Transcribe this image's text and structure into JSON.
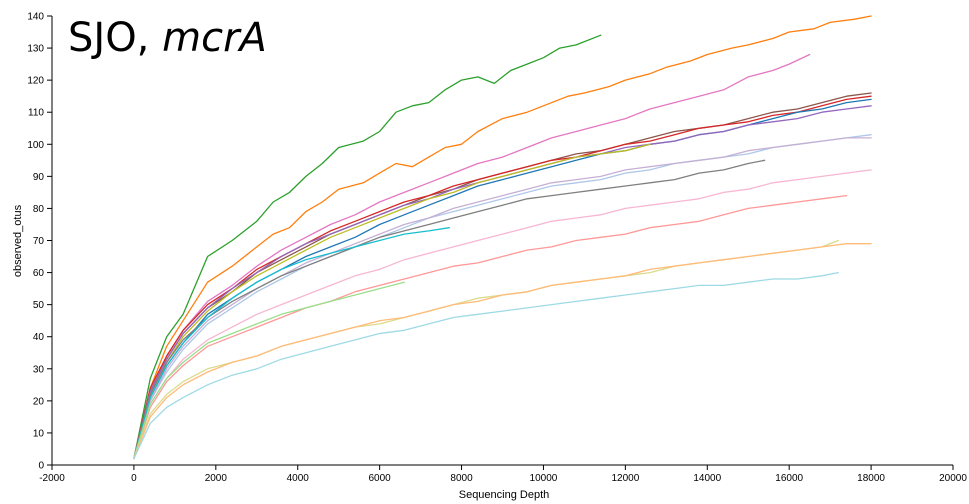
{
  "chart_data": {
    "type": "line",
    "title_main": "SJO, ",
    "title_italic": "mcrA",
    "xlabel": "Sequencing Depth",
    "ylabel": "observed_otus",
    "xlim": [
      -2000,
      20000
    ],
    "ylim": [
      0,
      140
    ],
    "x_ticks": [
      -2000,
      0,
      2000,
      4000,
      6000,
      8000,
      10000,
      12000,
      14000,
      16000,
      18000,
      20000
    ],
    "y_ticks": [
      0,
      10,
      20,
      30,
      40,
      50,
      60,
      70,
      80,
      90,
      100,
      110,
      120,
      130,
      140
    ],
    "grid": false,
    "series": [
      {
        "color": "#2ca02c",
        "x": [
          0,
          400,
          800,
          1200,
          1800,
          2400,
          3000,
          3400,
          3800,
          4200,
          4600,
          5000,
          5600,
          6000,
          6400,
          6800,
          7200,
          7600,
          8000,
          8400,
          8800,
          9200,
          9600,
          10000,
          10400,
          10800,
          11400
        ],
        "y": [
          2,
          27,
          40,
          47,
          65,
          70,
          76,
          82,
          85,
          90,
          94,
          99,
          101,
          104,
          110,
          112,
          113,
          117,
          120,
          121,
          119,
          123,
          125,
          127,
          130,
          131,
          134
        ]
      },
      {
        "color": "#ff7f0e",
        "x": [
          0,
          400,
          800,
          1200,
          1800,
          2400,
          3000,
          3400,
          3800,
          4200,
          4600,
          5000,
          5600,
          6000,
          6400,
          6800,
          7200,
          7600,
          8000,
          8400,
          9000,
          9600,
          10000,
          10600,
          11000,
          11600,
          12000,
          12600,
          13000,
          13600,
          14000,
          14600,
          15000,
          15600,
          16000,
          16600,
          17000,
          17600,
          18000
        ],
        "y": [
          2,
          24,
          37,
          45,
          57,
          62,
          68,
          72,
          74,
          79,
          82,
          86,
          88,
          91,
          94,
          93,
          96,
          99,
          100,
          104,
          108,
          110,
          112,
          115,
          116,
          118,
          120,
          122,
          124,
          126,
          128,
          130,
          131,
          133,
          135,
          136,
          138,
          139,
          140
        ]
      },
      {
        "color": "#e377c2",
        "x": [
          0,
          400,
          800,
          1200,
          1800,
          2400,
          3000,
          3600,
          4200,
          4800,
          5400,
          6000,
          6600,
          7200,
          7800,
          8400,
          9000,
          9600,
          10200,
          10800,
          11400,
          12000,
          12600,
          13200,
          13800,
          14400,
          15000,
          15600,
          16000,
          16500
        ],
        "y": [
          2,
          22,
          34,
          42,
          51,
          56,
          62,
          67,
          71,
          75,
          78,
          82,
          85,
          88,
          91,
          94,
          96,
          99,
          102,
          104,
          106,
          108,
          111,
          113,
          115,
          117,
          121,
          123,
          125,
          128
        ]
      },
      {
        "color": "#8c564b",
        "x": [
          0,
          400,
          800,
          1200,
          1800,
          2400,
          3000,
          3600,
          4200,
          4800,
          5400,
          6000,
          6600,
          7200,
          7800,
          8400,
          9000,
          9600,
          10200,
          10800,
          11400,
          12000,
          12600,
          13200,
          13800,
          14400,
          15000,
          15600,
          16200,
          16800,
          17400,
          18000
        ],
        "y": [
          2,
          23,
          33,
          41,
          49,
          54,
          60,
          64,
          68,
          72,
          75,
          78,
          81,
          84,
          86,
          89,
          91,
          93,
          95,
          97,
          98,
          100,
          102,
          104,
          105,
          106,
          108,
          110,
          111,
          113,
          115,
          116
        ]
      },
      {
        "color": "#d62728",
        "x": [
          0,
          400,
          800,
          1200,
          1800,
          2400,
          3000,
          3600,
          4200,
          4800,
          5400,
          6000,
          6600,
          7200,
          7800,
          8400,
          9000,
          9600,
          10200,
          10800,
          11400,
          12000,
          12600,
          13200,
          13800,
          14400,
          15000,
          15600,
          16200,
          16800,
          17400,
          18000
        ],
        "y": [
          2,
          24,
          34,
          42,
          50,
          55,
          61,
          65,
          69,
          73,
          76,
          79,
          82,
          84,
          87,
          89,
          91,
          93,
          95,
          96,
          98,
          100,
          101,
          103,
          105,
          106,
          107,
          109,
          110,
          112,
          114,
          115
        ]
      },
      {
        "color": "#1f77b4",
        "x": [
          0,
          400,
          800,
          1200,
          1800,
          2400,
          3000,
          3600,
          4200,
          4800,
          5400,
          6000,
          6600,
          7200,
          7800,
          8400,
          9000,
          9600,
          10200,
          10800,
          11400,
          12000,
          12600,
          13200,
          13800,
          14400,
          15000,
          15600,
          16200,
          16800,
          17400,
          18000
        ],
        "y": [
          2,
          21,
          31,
          38,
          47,
          52,
          57,
          61,
          65,
          68,
          71,
          75,
          78,
          81,
          84,
          87,
          89,
          91,
          93,
          95,
          97,
          98,
          100,
          101,
          103,
          104,
          106,
          108,
          110,
          111,
          113,
          114
        ]
      },
      {
        "color": "#9467bd",
        "x": [
          0,
          400,
          800,
          1200,
          1800,
          2400,
          3000,
          3600,
          4200,
          4800,
          5400,
          6000,
          6600,
          7200,
          7800,
          8400,
          9000,
          9600,
          10200,
          10800,
          11400,
          12000,
          12600,
          13200,
          13800,
          14400,
          15000,
          15600,
          16200,
          16800,
          17400,
          18000
        ],
        "y": [
          2,
          23,
          33,
          41,
          49,
          55,
          60,
          65,
          69,
          72,
          75,
          78,
          81,
          83,
          86,
          88,
          90,
          92,
          94,
          96,
          97,
          99,
          100,
          101,
          103,
          104,
          106,
          107,
          108,
          110,
          111,
          112
        ]
      },
      {
        "color": "#bcbd22",
        "x": [
          0,
          400,
          800,
          1200,
          1800,
          2400,
          3000,
          3600,
          4200,
          4800,
          5400,
          6000,
          6600,
          7200,
          7800,
          8400,
          9000,
          9600,
          10200,
          10800,
          11400,
          12000,
          12600
        ],
        "y": [
          2,
          22,
          32,
          40,
          48,
          54,
          59,
          63,
          67,
          71,
          74,
          77,
          80,
          83,
          85,
          88,
          90,
          92,
          94,
          96,
          97,
          98,
          100
        ]
      },
      {
        "color": "#aec7e8",
        "x": [
          0,
          400,
          800,
          1200,
          1800,
          2400,
          3000,
          3600,
          4200,
          4800,
          5400,
          6000,
          6600,
          7200,
          7800,
          8400,
          9000,
          9600,
          10200,
          10800,
          11400,
          12000,
          12600,
          13200,
          13800,
          14400,
          15000,
          15600,
          16200,
          16800,
          17400,
          18000
        ],
        "y": [
          2,
          20,
          29,
          36,
          44,
          49,
          54,
          58,
          62,
          65,
          68,
          71,
          74,
          77,
          79,
          81,
          83,
          85,
          87,
          88,
          89,
          91,
          92,
          94,
          95,
          96,
          97,
          99,
          100,
          101,
          102,
          103
        ]
      },
      {
        "color": "#c5b0d5",
        "x": [
          0,
          400,
          800,
          1200,
          1800,
          2400,
          3000,
          3600,
          4200,
          4800,
          5400,
          6000,
          6600,
          7200,
          7800,
          8400,
          9000,
          9600,
          10200,
          10800,
          11400,
          12000,
          12600,
          13200,
          13800,
          14400,
          15000,
          15600,
          16200,
          16800,
          17400,
          18000
        ],
        "y": [
          2,
          20,
          30,
          37,
          45,
          50,
          55,
          59,
          63,
          66,
          69,
          72,
          75,
          77,
          80,
          82,
          84,
          86,
          88,
          89,
          90,
          92,
          93,
          94,
          95,
          96,
          98,
          99,
          100,
          101,
          102,
          102
        ]
      },
      {
        "color": "#7f7f7f",
        "x": [
          0,
          400,
          800,
          1200,
          1800,
          2400,
          3000,
          3600,
          4200,
          4800,
          5400,
          6000,
          6600,
          7200,
          7800,
          8400,
          9000,
          9600,
          10200,
          10800,
          11400,
          12000,
          12600,
          13200,
          13800,
          14400,
          15000,
          15400
        ],
        "y": [
          2,
          22,
          32,
          39,
          46,
          51,
          55,
          59,
          62,
          65,
          68,
          71,
          73,
          75,
          77,
          79,
          81,
          83,
          84,
          85,
          86,
          87,
          88,
          89,
          91,
          92,
          94,
          95
        ]
      },
      {
        "color": "#17becf",
        "x": [
          0,
          400,
          800,
          1200,
          1800,
          2400,
          3000,
          3600,
          4200,
          4800,
          5400,
          6000,
          6600,
          7200,
          7700
        ],
        "y": [
          2,
          21,
          31,
          38,
          46,
          52,
          57,
          61,
          64,
          66,
          68,
          70,
          72,
          73,
          74
        ]
      },
      {
        "color": "#f7b6d2",
        "x": [
          0,
          400,
          800,
          1200,
          1800,
          2400,
          3000,
          3600,
          4200,
          4800,
          5400,
          6000,
          6600,
          7200,
          7800,
          8400,
          9000,
          9600,
          10200,
          10800,
          11400,
          12000,
          12600,
          13200,
          13800,
          14400,
          15000,
          15600,
          16200,
          16800,
          17400,
          18000
        ],
        "y": [
          2,
          19,
          27,
          33,
          39,
          43,
          47,
          50,
          53,
          56,
          59,
          61,
          64,
          66,
          68,
          70,
          72,
          74,
          76,
          77,
          78,
          80,
          81,
          82,
          83,
          85,
          86,
          88,
          89,
          90,
          91,
          92
        ]
      },
      {
        "color": "#ff9896",
        "x": [
          0,
          400,
          800,
          1200,
          1800,
          2400,
          3000,
          3600,
          4200,
          4800,
          5400,
          6000,
          6600,
          7200,
          7800,
          8400,
          9000,
          9600,
          10200,
          10800,
          11400,
          12000,
          12600,
          13200,
          13800,
          14400,
          15000,
          15600,
          16200,
          16800,
          17400
        ],
        "y": [
          2,
          18,
          26,
          31,
          37,
          40,
          43,
          46,
          49,
          51,
          54,
          56,
          58,
          60,
          62,
          63,
          65,
          67,
          68,
          70,
          71,
          72,
          74,
          75,
          76,
          78,
          80,
          81,
          82,
          83,
          84
        ]
      },
      {
        "color": "#98df8a",
        "x": [
          0,
          400,
          800,
          1200,
          1800,
          2400,
          3000,
          3600,
          4200,
          4800,
          5400,
          6000,
          6600
        ],
        "y": [
          2,
          19,
          27,
          32,
          38,
          41,
          44,
          47,
          49,
          51,
          53,
          55,
          57
        ]
      },
      {
        "color": "#dbdb8d",
        "x": [
          0,
          400,
          800,
          1200,
          1800,
          2400,
          3000,
          3600,
          4200,
          4800,
          5400,
          6000,
          6600,
          7200,
          7800,
          8400,
          9000,
          9600,
          10200,
          10800,
          11400,
          12000,
          12600,
          13200,
          13800,
          14400,
          15000,
          15600,
          16200,
          16800,
          17200
        ],
        "y": [
          2,
          16,
          22,
          26,
          30,
          32,
          34,
          37,
          39,
          41,
          43,
          44,
          46,
          48,
          50,
          52,
          53,
          54,
          56,
          57,
          58,
          59,
          60,
          62,
          63,
          64,
          65,
          66,
          67,
          68,
          70
        ]
      },
      {
        "color": "#ffbb78",
        "x": [
          0,
          400,
          800,
          1200,
          1800,
          2400,
          3000,
          3600,
          4200,
          4800,
          5400,
          6000,
          6600,
          7200,
          7800,
          8400,
          9000,
          9600,
          10200,
          10800,
          11400,
          12000,
          12600,
          13200,
          13800,
          14400,
          15000,
          15600,
          16200,
          16800,
          17400,
          18000
        ],
        "y": [
          2,
          15,
          21,
          25,
          29,
          32,
          34,
          37,
          39,
          41,
          43,
          45,
          46,
          48,
          50,
          51,
          53,
          54,
          56,
          57,
          58,
          59,
          61,
          62,
          63,
          64,
          65,
          66,
          67,
          68,
          69,
          69
        ]
      },
      {
        "color": "#9edae5",
        "x": [
          0,
          400,
          800,
          1200,
          1800,
          2400,
          3000,
          3600,
          4200,
          4800,
          5400,
          6000,
          6600,
          7200,
          7800,
          8400,
          9000,
          9600,
          10200,
          10800,
          11400,
          12000,
          12600,
          13200,
          13800,
          14400,
          15000,
          15600,
          16200,
          16800,
          17200
        ],
        "y": [
          2,
          13,
          18,
          21,
          25,
          28,
          30,
          33,
          35,
          37,
          39,
          41,
          42,
          44,
          46,
          47,
          48,
          49,
          50,
          51,
          52,
          53,
          54,
          55,
          56,
          56,
          57,
          58,
          58,
          59,
          60
        ]
      }
    ]
  }
}
